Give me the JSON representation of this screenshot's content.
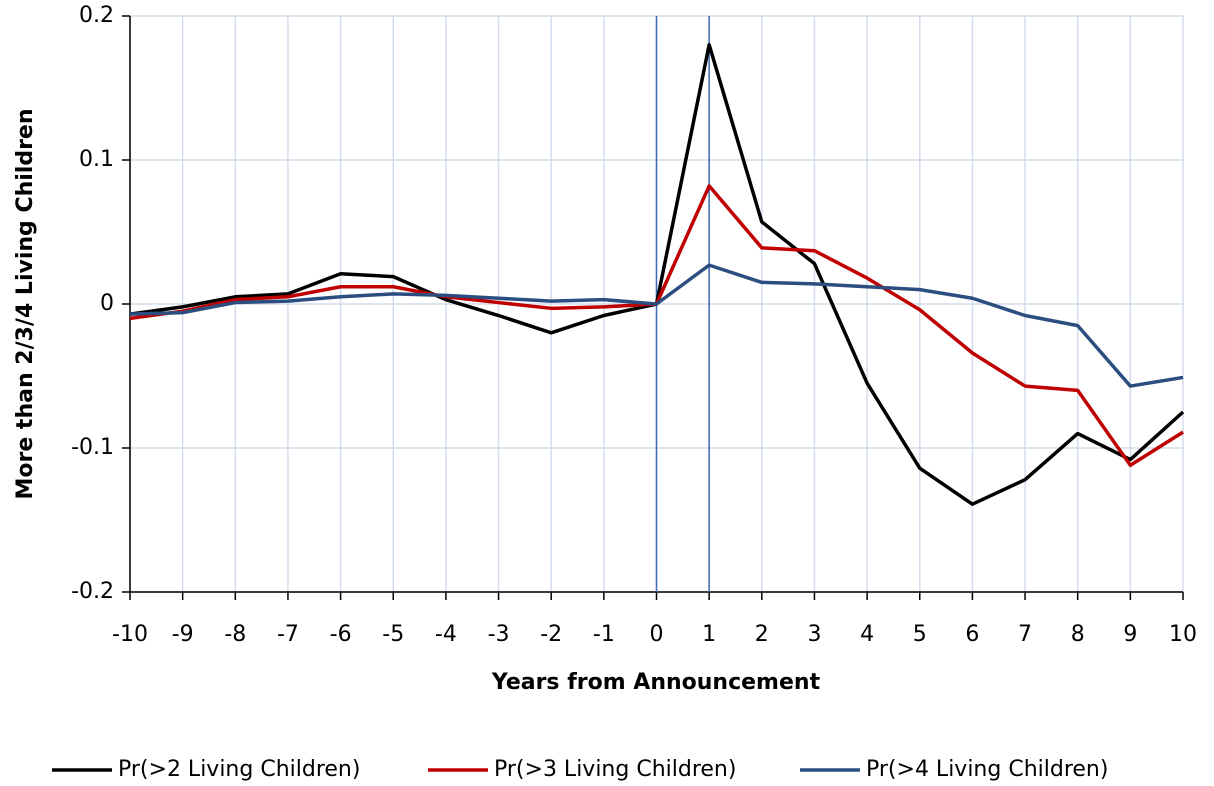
{
  "chart_data": {
    "type": "line",
    "xlabel": "Years from Announcement",
    "ylabel": "More than  2/3/4 Living Children",
    "x": [
      -10,
      -9,
      -8,
      -7,
      -6,
      -5,
      -4,
      -3,
      -2,
      -1,
      0,
      1,
      2,
      3,
      4,
      5,
      6,
      7,
      8,
      9,
      10
    ],
    "series": [
      {
        "name": "Pr(>2 Living Children)",
        "color": "#000000",
        "values": [
          -0.007,
          -0.002,
          0.005,
          0.007,
          0.021,
          0.019,
          0.003,
          -0.008,
          -0.02,
          -0.008,
          0,
          0.18,
          0.057,
          0.028,
          -0.055,
          -0.114,
          -0.139,
          -0.122,
          -0.09,
          -0.108,
          -0.075
        ]
      },
      {
        "name": "Pr(>3 Living Children)",
        "color": "#c00000",
        "values": [
          -0.01,
          -0.005,
          0.003,
          0.005,
          0.012,
          0.012,
          0.005,
          0.001,
          -0.003,
          -0.002,
          0,
          0.082,
          0.039,
          0.037,
          0.018,
          -0.004,
          -0.034,
          -0.057,
          -0.06,
          -0.112,
          -0.089
        ]
      },
      {
        "name": "Pr(>4 Living Children)",
        "color": "#2c4d80",
        "values": [
          -0.007,
          -0.006,
          0.001,
          0.002,
          0.005,
          0.007,
          0.006,
          0.004,
          0.002,
          0.003,
          0,
          0.027,
          0.015,
          0.014,
          0.012,
          0.01,
          0.004,
          -0.008,
          -0.015,
          -0.057,
          -0.051
        ]
      }
    ],
    "xlim": [
      -10,
      10
    ],
    "xticks": [
      -10,
      -9,
      -8,
      -7,
      -6,
      -5,
      -4,
      -3,
      -2,
      -1,
      0,
      1,
      2,
      3,
      4,
      5,
      6,
      7,
      8,
      9,
      10
    ],
    "ylim": [
      -0.2,
      0.2
    ],
    "yticks": [
      -0.2,
      -0.1,
      0,
      0.1,
      0.2
    ],
    "vlines": [
      0,
      1
    ],
    "vline_color": "#3e6cb5",
    "grid": true,
    "legend": "bottom"
  }
}
